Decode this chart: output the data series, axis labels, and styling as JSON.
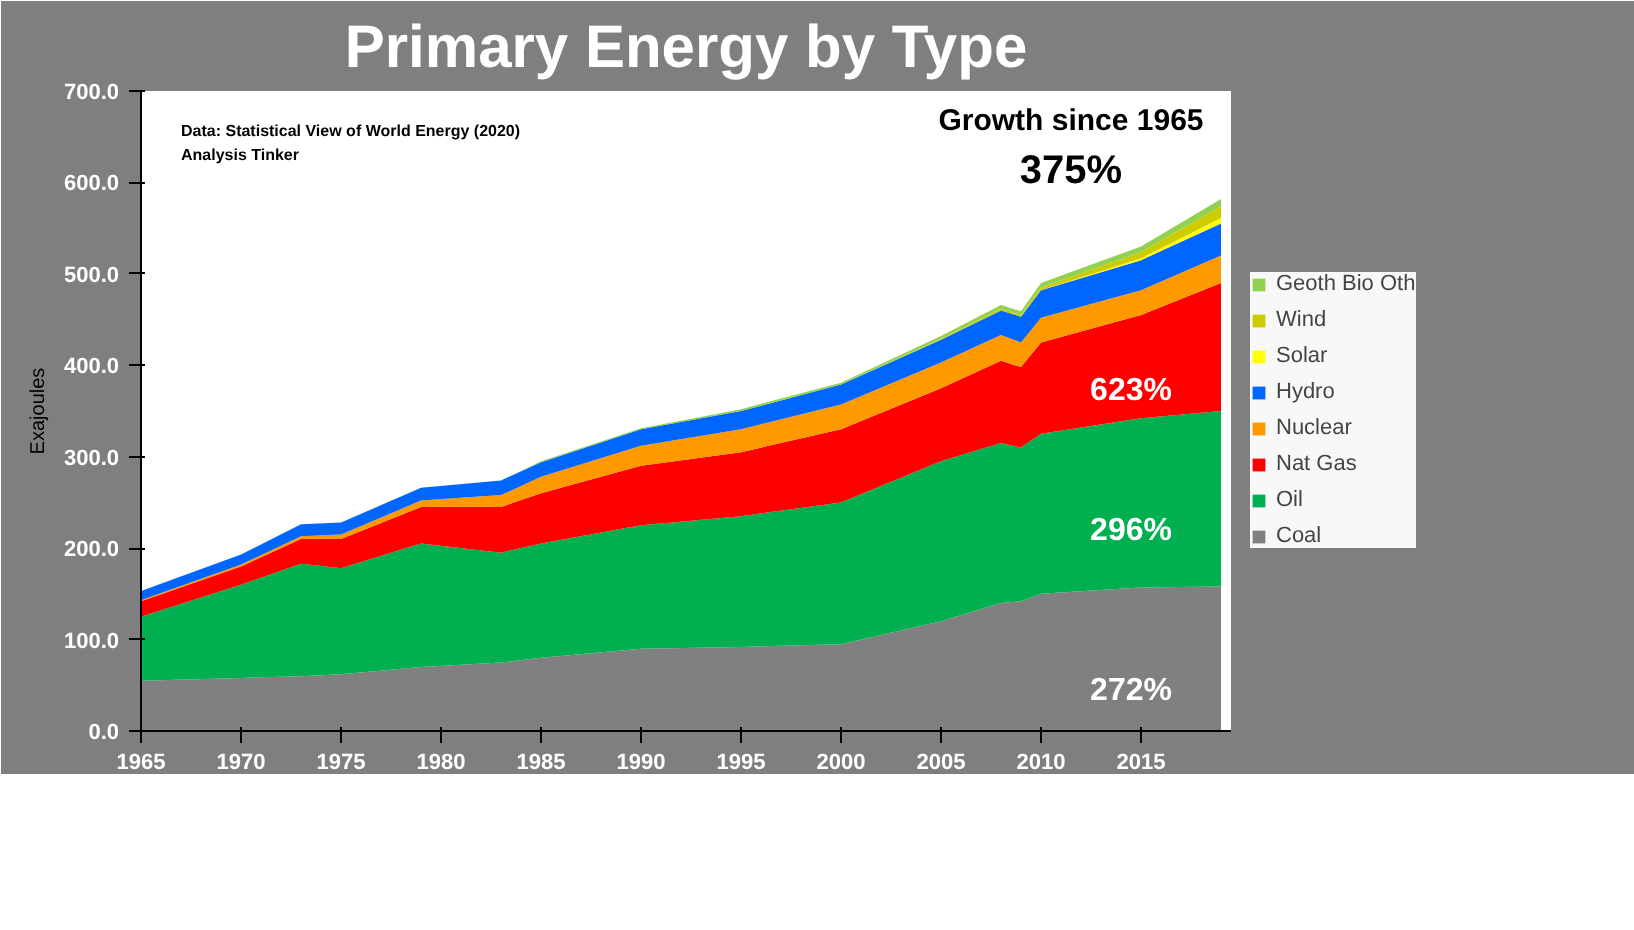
{
  "chart_data": {
    "type": "area",
    "stacked": true,
    "title": "Primary Energy by Type",
    "ylabel": "Exajoules",
    "x": [
      1965,
      1970,
      1973,
      1975,
      1979,
      1983,
      1985,
      1990,
      1995,
      2000,
      2005,
      2008,
      2009,
      2010,
      2015,
      2019
    ],
    "series": [
      {
        "name": "Coal",
        "color": "#808080",
        "values": [
          55,
          58,
          60,
          62,
          70,
          75,
          80,
          90,
          92,
          95,
          120,
          140,
          142,
          150,
          157,
          158
        ]
      },
      {
        "name": "Oil",
        "color": "#00b050",
        "values": [
          70,
          102,
          123,
          116,
          135,
          120,
          125,
          135,
          143,
          155,
          175,
          175,
          168,
          175,
          185,
          192
        ]
      },
      {
        "name": "Nat Gas",
        "color": "#ff0000",
        "values": [
          17,
          20,
          27,
          32,
          40,
          50,
          55,
          65,
          70,
          80,
          80,
          90,
          88,
          100,
          113,
          140
        ]
      },
      {
        "name": "Nuclear",
        "color": "#ff9900",
        "values": [
          1,
          2,
          3,
          5,
          7,
          13,
          18,
          22,
          25,
          27,
          28,
          28,
          27,
          27,
          27,
          30
        ]
      },
      {
        "name": "Hydro",
        "color": "#0066ff",
        "values": [
          10,
          11,
          13,
          13,
          14,
          16,
          16,
          18,
          20,
          22,
          25,
          27,
          28,
          30,
          33,
          35
        ]
      },
      {
        "name": "Solar",
        "color": "#ffff00",
        "values": [
          0,
          0,
          0,
          0,
          0,
          0,
          0,
          0,
          0,
          0,
          0,
          0,
          0,
          0,
          2,
          6
        ]
      },
      {
        "name": "Wind",
        "color": "#cccc00",
        "values": [
          0,
          0,
          0,
          0,
          0,
          0,
          0,
          0,
          0,
          0,
          1,
          2,
          2,
          3,
          7,
          13
        ]
      },
      {
        "name": "Geoth Bio Oth",
        "color": "#92d050",
        "values": [
          0,
          0,
          0,
          0,
          0,
          0,
          1,
          1,
          2,
          2,
          3,
          4,
          4,
          5,
          6,
          8
        ]
      }
    ],
    "xlim": [
      1965,
      2019.5
    ],
    "ylim": [
      0,
      700
    ],
    "xticks": [
      1965,
      1970,
      1975,
      1980,
      1985,
      1990,
      1995,
      2000,
      2005,
      2010,
      2015
    ],
    "yticks": [
      {
        "value": 0,
        "label": "0.0"
      },
      {
        "value": 100,
        "label": "100.0"
      },
      {
        "value": 200,
        "label": "200.0"
      },
      {
        "value": 300,
        "label": "300.0"
      },
      {
        "value": 400,
        "label": "400.0"
      },
      {
        "value": 500,
        "label": "500.0"
      },
      {
        "value": 600,
        "label": "600.0"
      },
      {
        "value": 700,
        "label": "700.0"
      }
    ],
    "legend": "right",
    "grid": false,
    "annotations": [
      "Data: Statistical View of World Energy (2020)",
      "Analysis Tinker",
      "Growth since 1965",
      "375%",
      "623%",
      "296%",
      "272%"
    ]
  }
}
